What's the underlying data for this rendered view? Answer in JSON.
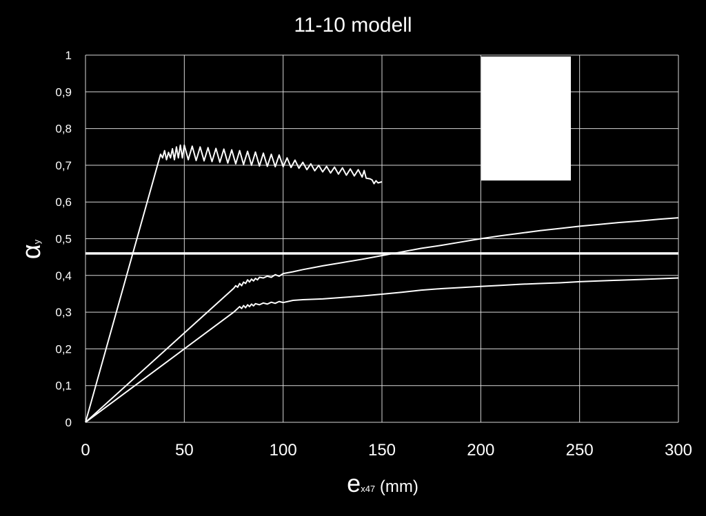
{
  "chart_data": {
    "type": "line",
    "title": "11-10 modell",
    "xlabel": {
      "main": "e",
      "sub": "x47",
      "unit": " (mm)"
    },
    "ylabel": {
      "main": "α",
      "sub": "y"
    },
    "xlim": [
      0,
      300
    ],
    "ylim": [
      0,
      1
    ],
    "xticks": [
      0,
      50,
      100,
      150,
      200,
      250,
      300
    ],
    "xtick_labels": [
      "0",
      "50",
      "100",
      "150",
      "200",
      "250",
      "300"
    ],
    "yticks": [
      0,
      0.1,
      0.2,
      0.3,
      0.4,
      0.5,
      0.6,
      0.7,
      0.8,
      0.9,
      1
    ],
    "ytick_labels": [
      "0",
      "0,1",
      "0,2",
      "0,3",
      "0,4",
      "0,5",
      "0,6",
      "0,7",
      "0,8",
      "0,9",
      "1"
    ],
    "grid": true,
    "colors": {
      "background": "#000000",
      "line": "#ffffff",
      "grid": "#d9d9d9"
    },
    "series": [
      {
        "x": [
          0,
          38,
          39,
          40,
          41,
          42,
          43,
          44,
          45,
          46,
          47,
          48,
          49,
          50,
          52,
          54,
          56,
          58,
          60,
          62,
          64,
          66,
          68,
          70,
          72,
          74,
          76,
          78,
          80,
          82,
          84,
          86,
          88,
          90,
          92,
          94,
          96,
          98,
          100,
          102,
          104,
          106,
          108,
          110,
          112,
          114,
          116,
          118,
          120,
          122,
          124,
          126,
          128,
          130,
          132,
          134,
          136,
          138,
          140,
          141,
          142,
          144,
          145,
          146,
          147,
          148,
          150
        ],
        "y": [
          0,
          0.73,
          0.72,
          0.74,
          0.715,
          0.735,
          0.72,
          0.745,
          0.715,
          0.75,
          0.72,
          0.755,
          0.72,
          0.755,
          0.715,
          0.752,
          0.713,
          0.75,
          0.712,
          0.748,
          0.71,
          0.746,
          0.708,
          0.744,
          0.706,
          0.742,
          0.704,
          0.74,
          0.702,
          0.738,
          0.7,
          0.736,
          0.698,
          0.733,
          0.697,
          0.73,
          0.696,
          0.728,
          0.696,
          0.72,
          0.694,
          0.714,
          0.692,
          0.708,
          0.688,
          0.704,
          0.685,
          0.7,
          0.682,
          0.697,
          0.679,
          0.695,
          0.676,
          0.693,
          0.673,
          0.69,
          0.671,
          0.688,
          0.668,
          0.686,
          0.665,
          0.663,
          0.66,
          0.65,
          0.658,
          0.652,
          0.655
        ]
      },
      {
        "x": [
          0,
          75,
          76,
          77,
          78,
          79,
          80,
          81,
          82,
          83,
          84,
          85,
          86,
          87,
          88,
          90,
          92,
          94,
          96,
          98,
          100,
          105,
          110,
          115,
          120,
          130,
          140,
          150,
          160,
          170,
          180,
          190,
          200,
          210,
          220,
          230,
          240,
          250,
          260,
          270,
          280,
          290,
          300
        ],
        "y": [
          0,
          0.365,
          0.372,
          0.368,
          0.378,
          0.372,
          0.382,
          0.378,
          0.388,
          0.382,
          0.39,
          0.385,
          0.392,
          0.388,
          0.395,
          0.393,
          0.398,
          0.395,
          0.402,
          0.398,
          0.405,
          0.41,
          0.416,
          0.421,
          0.426,
          0.435,
          0.444,
          0.454,
          0.464,
          0.474,
          0.482,
          0.491,
          0.5,
          0.508,
          0.515,
          0.522,
          0.528,
          0.534,
          0.539,
          0.544,
          0.548,
          0.553,
          0.557
        ]
      },
      {
        "x": [
          0,
          75,
          77,
          78,
          79,
          80,
          81,
          82,
          83,
          84,
          85,
          86,
          88,
          90,
          92,
          94,
          96,
          98,
          100,
          105,
          110,
          120,
          130,
          140,
          150,
          160,
          170,
          180,
          190,
          200,
          210,
          220,
          230,
          240,
          250,
          260,
          270,
          280,
          290,
          300
        ],
        "y": [
          0,
          0.3,
          0.31,
          0.315,
          0.31,
          0.318,
          0.312,
          0.32,
          0.315,
          0.322,
          0.317,
          0.323,
          0.32,
          0.325,
          0.322,
          0.327,
          0.324,
          0.329,
          0.326,
          0.332,
          0.334,
          0.336,
          0.34,
          0.344,
          0.349,
          0.354,
          0.36,
          0.364,
          0.367,
          0.37,
          0.373,
          0.376,
          0.378,
          0.38,
          0.383,
          0.385,
          0.387,
          0.389,
          0.391,
          0.393
        ]
      }
    ],
    "reference_lines": [
      {
        "orientation": "horizontal",
        "y": 0.46
      }
    ]
  }
}
